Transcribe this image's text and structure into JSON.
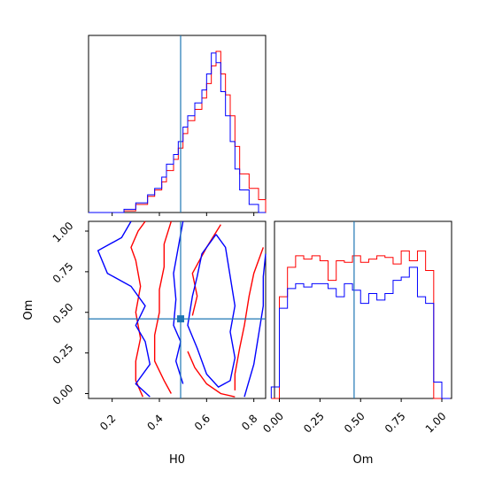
{
  "chart_data": {
    "type": "corner",
    "truth": {
      "H0": 0.49,
      "Om": 0.46
    },
    "colors": {
      "series_a": "#ff0000",
      "series_b": "#0000ff",
      "truth": "#1f77b4"
    },
    "labels": {
      "x_bottom_left": "H0",
      "x_bottom_right": "Om",
      "y_left": "Om"
    },
    "H0_ticks": [
      "0.2",
      "0.4",
      "0.6",
      "0.8"
    ],
    "Om_ticks": [
      "0.00",
      "0.25",
      "0.50",
      "0.75",
      "1.00"
    ],
    "H0_range": [
      0.1,
      0.85
    ],
    "Om_range": [
      -0.03,
      1.06
    ],
    "H0_hist": {
      "edges": [
        0.1,
        0.25,
        0.3,
        0.35,
        0.38,
        0.41,
        0.43,
        0.46,
        0.48,
        0.5,
        0.52,
        0.55,
        0.58,
        0.6,
        0.62,
        0.64,
        0.66,
        0.68,
        0.7,
        0.72,
        0.74,
        0.78,
        0.82,
        0.85
      ],
      "series": [
        {
          "name": "red",
          "values": [
            0.0,
            0.01,
            0.05,
            0.1,
            0.14,
            0.19,
            0.26,
            0.33,
            0.4,
            0.49,
            0.57,
            0.64,
            0.71,
            0.8,
            0.91,
            1.0,
            0.86,
            0.73,
            0.6,
            0.41,
            0.24,
            0.15,
            0.08
          ]
        },
        {
          "name": "blue",
          "values": [
            0.0,
            0.02,
            0.06,
            0.11,
            0.15,
            0.22,
            0.3,
            0.36,
            0.44,
            0.53,
            0.6,
            0.68,
            0.76,
            0.86,
            0.99,
            0.93,
            0.75,
            0.6,
            0.44,
            0.27,
            0.14,
            0.05,
            0.0
          ]
        }
      ]
    },
    "Om_hist": {
      "edges": [
        -0.05,
        0.0,
        0.05,
        0.1,
        0.15,
        0.2,
        0.25,
        0.3,
        0.35,
        0.4,
        0.45,
        0.5,
        0.55,
        0.6,
        0.65,
        0.7,
        0.75,
        0.8,
        0.85,
        0.9,
        0.95,
        1.0,
        1.05
      ],
      "series": [
        {
          "name": "red",
          "values": [
            0.0,
            0.62,
            0.8,
            0.87,
            0.85,
            0.87,
            0.84,
            0.72,
            0.84,
            0.83,
            0.87,
            0.83,
            0.85,
            0.87,
            0.86,
            0.82,
            0.9,
            0.84,
            0.9,
            0.78,
            0.0,
            0.0
          ]
        },
        {
          "name": "blue",
          "values": [
            0.07,
            0.55,
            0.67,
            0.7,
            0.68,
            0.7,
            0.7,
            0.67,
            0.62,
            0.7,
            0.66,
            0.58,
            0.64,
            0.6,
            0.64,
            0.72,
            0.74,
            0.8,
            0.62,
            0.58,
            0.1,
            0.0
          ]
        }
      ]
    },
    "joint": {
      "red_contours": [
        [
          [
            0.33,
            -0.02
          ],
          [
            0.3,
            0.08
          ],
          [
            0.3,
            0.2
          ],
          [
            0.32,
            0.34
          ],
          [
            0.3,
            0.5
          ],
          [
            0.32,
            0.66
          ],
          [
            0.3,
            0.82
          ],
          [
            0.28,
            0.9
          ],
          [
            0.31,
            1.0
          ],
          [
            0.34,
            1.06
          ]
        ],
        [
          [
            0.54,
            0.48
          ],
          [
            0.56,
            0.6
          ],
          [
            0.54,
            0.74
          ],
          [
            0.6,
            0.9
          ],
          [
            0.66,
            1.04
          ]
        ],
        [
          [
            0.84,
            0.9
          ],
          [
            0.8,
            0.74
          ],
          [
            0.78,
            0.6
          ],
          [
            0.76,
            0.42
          ],
          [
            0.74,
            0.28
          ],
          [
            0.72,
            0.12
          ],
          [
            0.72,
            0.02
          ]
        ],
        [
          [
            0.52,
            0.26
          ],
          [
            0.55,
            0.16
          ],
          [
            0.6,
            0.06
          ],
          [
            0.66,
            0.0
          ],
          [
            0.72,
            -0.02
          ]
        ],
        [
          [
            0.45,
            1.06
          ],
          [
            0.42,
            0.92
          ],
          [
            0.42,
            0.78
          ],
          [
            0.4,
            0.64
          ],
          [
            0.4,
            0.5
          ],
          [
            0.38,
            0.36
          ],
          [
            0.38,
            0.2
          ],
          [
            0.42,
            0.08
          ],
          [
            0.45,
            0.0
          ]
        ]
      ],
      "blue_contours": [
        [
          [
            0.28,
            1.06
          ],
          [
            0.24,
            0.96
          ],
          [
            0.14,
            0.88
          ],
          [
            0.18,
            0.74
          ],
          [
            0.28,
            0.66
          ],
          [
            0.34,
            0.54
          ],
          [
            0.3,
            0.42
          ],
          [
            0.34,
            0.32
          ],
          [
            0.36,
            0.18
          ],
          [
            0.3,
            0.06
          ],
          [
            0.36,
            -0.02
          ]
        ],
        [
          [
            0.5,
            1.06
          ],
          [
            0.48,
            0.9
          ],
          [
            0.46,
            0.74
          ],
          [
            0.47,
            0.58
          ],
          [
            0.46,
            0.42
          ],
          [
            0.49,
            0.32
          ],
          [
            0.47,
            0.2
          ],
          [
            0.5,
            0.06
          ]
        ],
        [
          [
            0.64,
            0.98
          ],
          [
            0.58,
            0.86
          ],
          [
            0.56,
            0.72
          ],
          [
            0.54,
            0.6
          ],
          [
            0.52,
            0.42
          ],
          [
            0.56,
            0.28
          ],
          [
            0.6,
            0.12
          ],
          [
            0.65,
            0.04
          ],
          [
            0.7,
            0.08
          ],
          [
            0.72,
            0.22
          ],
          [
            0.7,
            0.38
          ],
          [
            0.72,
            0.54
          ],
          [
            0.7,
            0.72
          ],
          [
            0.68,
            0.9
          ],
          [
            0.64,
            0.98
          ]
        ],
        [
          [
            0.76,
            -0.02
          ],
          [
            0.8,
            0.18
          ],
          [
            0.82,
            0.36
          ],
          [
            0.84,
            0.54
          ],
          [
            0.84,
            0.72
          ],
          [
            0.85,
            0.86
          ]
        ]
      ]
    }
  }
}
